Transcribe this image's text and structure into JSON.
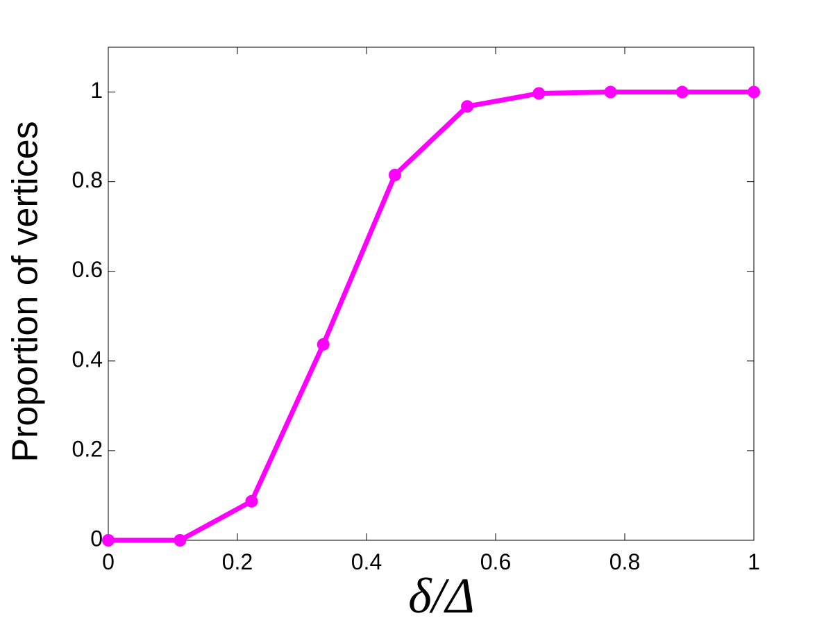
{
  "chart_data": {
    "type": "line",
    "x_label": "δ/Δ",
    "y_label": "Proportion of vertices",
    "x": [
      0,
      0.111,
      0.222,
      0.333,
      0.444,
      0.556,
      0.667,
      0.778,
      0.889,
      1
    ],
    "series": [
      {
        "color": "#ff00ff",
        "values": [
          0,
          0,
          0.087,
          0.437,
          0.815,
          0.968,
          0.997,
          1,
          1,
          1
        ]
      }
    ],
    "xlim": [
      0,
      1
    ],
    "ylim": [
      0,
      1.1
    ],
    "xticks": [
      0,
      0.2,
      0.4,
      0.6,
      0.8,
      1
    ],
    "yticks": [
      0,
      0.2,
      0.4,
      0.6,
      0.8,
      1
    ],
    "grid": false
  }
}
